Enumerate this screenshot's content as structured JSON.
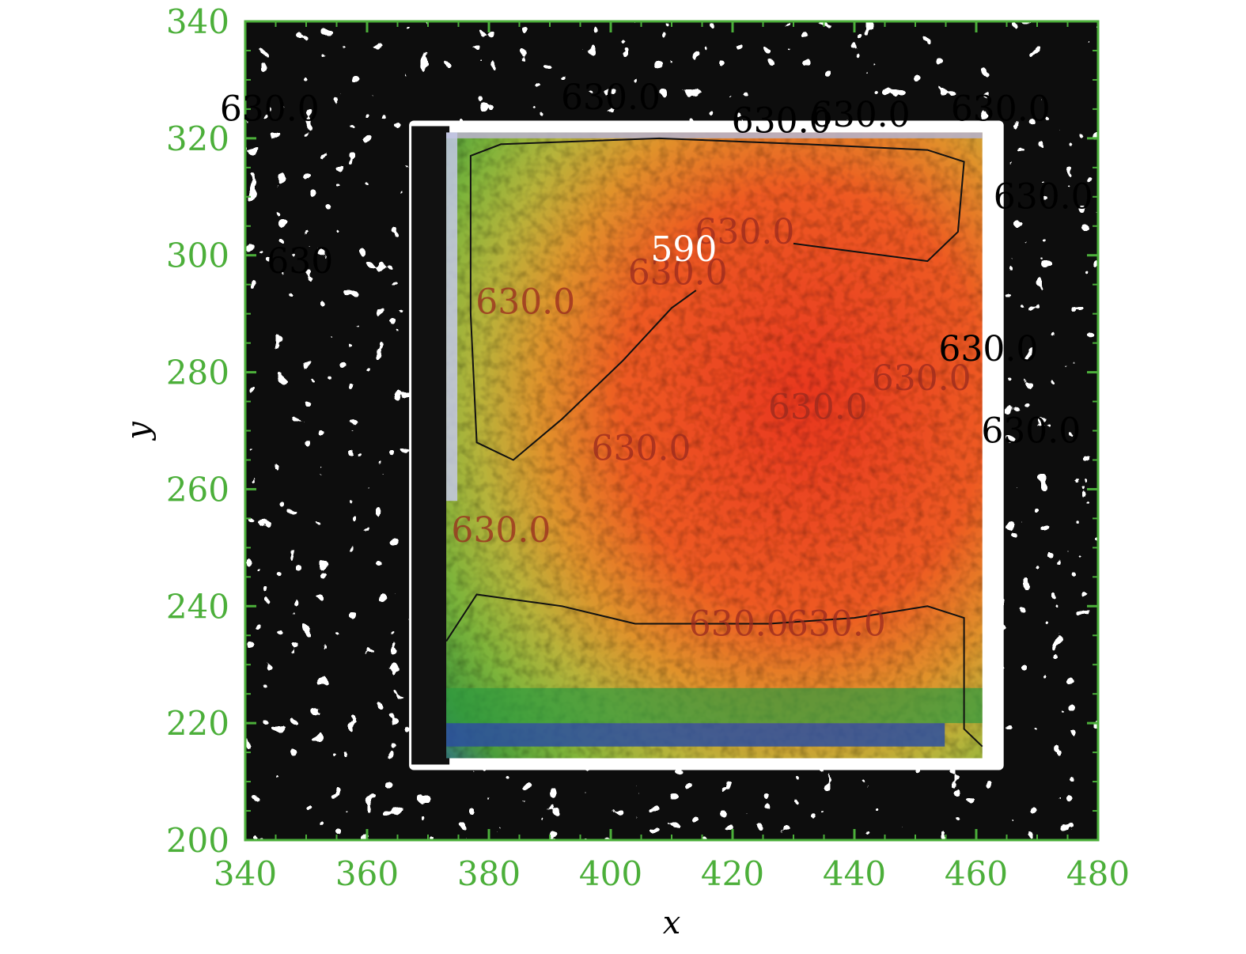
{
  "colors": {
    "axis": "#4caf3a",
    "background_mask": "#111111",
    "contour_line": "#111111"
  },
  "chart_data": {
    "type": "heatmap",
    "xlabel": "x",
    "ylabel": "y",
    "xlim": [
      340,
      480
    ],
    "ylim": [
      200,
      340
    ],
    "x_ticks": [
      340,
      360,
      380,
      400,
      420,
      440,
      460,
      480
    ],
    "y_ticks": [
      200,
      220,
      240,
      260,
      280,
      300,
      320,
      340
    ],
    "x_tick_labels": [
      "340",
      "360",
      "380",
      "400",
      "420",
      "440",
      "460",
      "480"
    ],
    "y_tick_labels": [
      "200",
      "220",
      "240",
      "260",
      "280",
      "300",
      "320",
      "340"
    ],
    "grid": false,
    "colormap": "blue-green-yellow-red",
    "heat_region": {
      "x": [
        373,
        461
      ],
      "y": [
        214,
        321
      ]
    },
    "heat_peak": {
      "x": 432,
      "y": 275
    },
    "contours": [
      {
        "level": "590",
        "label": "590",
        "label_at": [
          412,
          299
        ],
        "points": [
          [
            414,
            294
          ],
          [
            410,
            291
          ],
          [
            402,
            282
          ],
          [
            392,
            272
          ],
          [
            384,
            265
          ],
          [
            378,
            268
          ],
          [
            377,
            290
          ],
          [
            377,
            317
          ],
          [
            382,
            319
          ],
          [
            408,
            320
          ],
          [
            432,
            319
          ],
          [
            452,
            318
          ],
          [
            458,
            316
          ],
          [
            457,
            304
          ],
          [
            452,
            299
          ],
          [
            430,
            302
          ]
        ]
      },
      {
        "level": "590",
        "label": "",
        "label_at": null,
        "points": [
          [
            373,
            234
          ],
          [
            378,
            242
          ],
          [
            392,
            240
          ],
          [
            404,
            237
          ],
          [
            426,
            237
          ],
          [
            440,
            238
          ],
          [
            452,
            240
          ],
          [
            458,
            238
          ],
          [
            458,
            230
          ],
          [
            458,
            219
          ],
          [
            461,
            216
          ]
        ]
      }
    ],
    "contour_labels": [
      {
        "text": "630.0",
        "at": [
          400,
          325
        ]
      },
      {
        "text": "630.0",
        "at": [
          428,
          321
        ]
      },
      {
        "text": "630.0",
        "at": [
          464,
          323
        ]
      },
      {
        "text": "630.0",
        "at": [
          344,
          323
        ]
      },
      {
        "text": "630.0",
        "at": [
          471,
          308
        ]
      },
      {
        "text": "630.0",
        "at": [
          441,
          322
        ]
      },
      {
        "text": "630.0",
        "at": [
          422,
          302
        ]
      },
      {
        "text": "630.0",
        "at": [
          411,
          295
        ]
      },
      {
        "text": "630.0",
        "at": [
          386,
          290
        ]
      },
      {
        "text": "630.0",
        "at": [
          462,
          282
        ]
      },
      {
        "text": "630.0",
        "at": [
          451,
          277
        ]
      },
      {
        "text": "630.0",
        "at": [
          434,
          272
        ]
      },
      {
        "text": "630.0",
        "at": [
          469,
          268
        ]
      },
      {
        "text": "630.0",
        "at": [
          405,
          265
        ]
      },
      {
        "text": "630.0",
        "at": [
          382,
          251
        ]
      },
      {
        "text": "630.0",
        "at": [
          421,
          235
        ]
      },
      {
        "text": "630.0",
        "at": [
          437,
          235
        ]
      },
      {
        "text": "630",
        "at": [
          349,
          297
        ]
      }
    ]
  }
}
